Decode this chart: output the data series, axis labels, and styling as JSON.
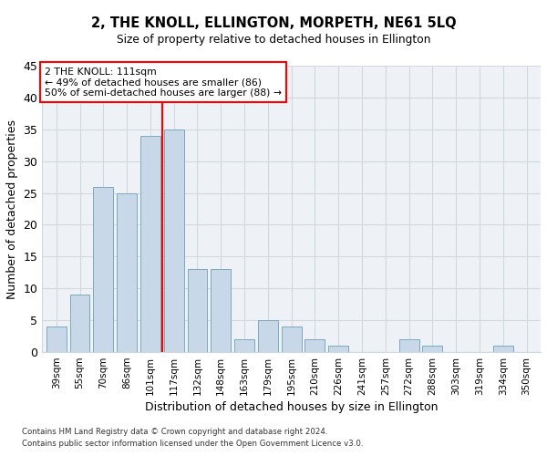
{
  "title": "2, THE KNOLL, ELLINGTON, MORPETH, NE61 5LQ",
  "subtitle": "Size of property relative to detached houses in Ellington",
  "xlabel": "Distribution of detached houses by size in Ellington",
  "ylabel": "Number of detached properties",
  "categories": [
    "39sqm",
    "55sqm",
    "70sqm",
    "86sqm",
    "101sqm",
    "117sqm",
    "132sqm",
    "148sqm",
    "163sqm",
    "179sqm",
    "195sqm",
    "210sqm",
    "226sqm",
    "241sqm",
    "257sqm",
    "272sqm",
    "288sqm",
    "303sqm",
    "319sqm",
    "334sqm",
    "350sqm"
  ],
  "values": [
    4,
    9,
    26,
    25,
    34,
    35,
    13,
    13,
    2,
    5,
    4,
    2,
    1,
    0,
    0,
    2,
    1,
    0,
    0,
    1,
    0
  ],
  "bar_color": "#c8d8e8",
  "bar_edge_color": "#7aaabf",
  "vline_color": "red",
  "vline_x": 4.5,
  "annotation_line1": "2 THE KNOLL: 111sqm",
  "annotation_line2": "← 49% of detached houses are smaller (86)",
  "annotation_line3": "50% of semi-detached houses are larger (88) →",
  "annotation_box_color": "white",
  "annotation_box_edge": "red",
  "ylim": [
    0,
    45
  ],
  "yticks": [
    0,
    5,
    10,
    15,
    20,
    25,
    30,
    35,
    40,
    45
  ],
  "footer1": "Contains HM Land Registry data © Crown copyright and database right 2024.",
  "footer2": "Contains public sector information licensed under the Open Government Licence v3.0.",
  "background_color": "#eef2f7",
  "grid_color": "#d0d8e0"
}
